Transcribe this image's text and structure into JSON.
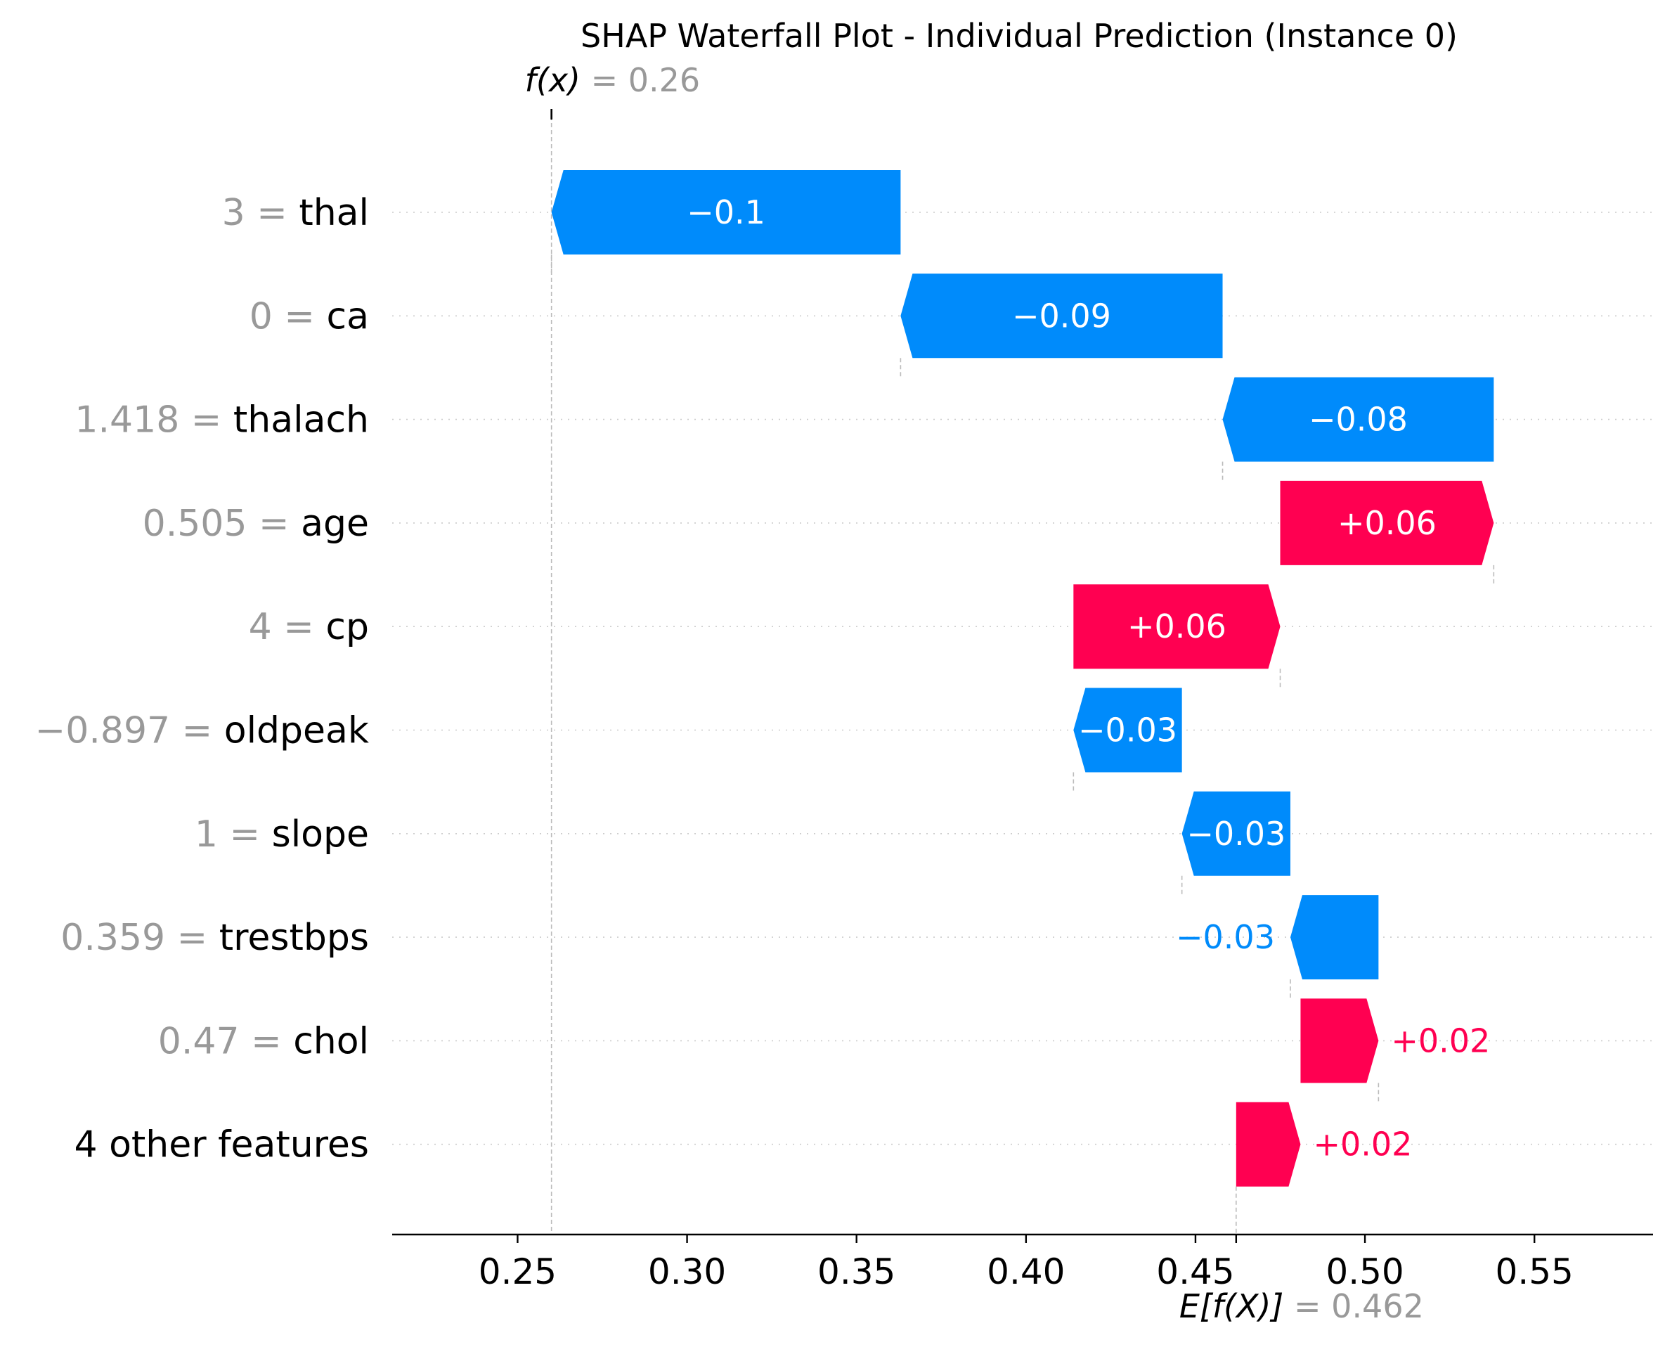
{
  "chart_data": {
    "type": "bar",
    "subtype": "waterfall",
    "title": "SHAP Waterfall Plot - Individual Prediction (Instance 0)",
    "fx": {
      "label": "f(x)",
      "value_text": "0.26",
      "value": 0.26
    },
    "base": {
      "label": "E[f(X)]",
      "value_text": "0.462",
      "value": 0.462
    },
    "xlim": [
      0.213,
      0.585
    ],
    "xticks": [
      0.25,
      0.3,
      0.35,
      0.4,
      0.45,
      0.5,
      0.55
    ],
    "xtick_labels": [
      "0.25",
      "0.30",
      "0.35",
      "0.40",
      "0.45",
      "0.50",
      "0.55"
    ],
    "features": [
      {
        "value": "3",
        "name": "thal",
        "start": 0.363,
        "end": 0.26,
        "label": "−0.1",
        "inside": true
      },
      {
        "value": "0",
        "name": "ca",
        "start": 0.458,
        "end": 0.363,
        "label": "−0.09",
        "inside": true
      },
      {
        "value": "1.418",
        "name": "thalach",
        "start": 0.538,
        "end": 0.458,
        "label": "−0.08",
        "inside": true
      },
      {
        "value": "0.505",
        "name": "age",
        "start": 0.475,
        "end": 0.538,
        "label": "+0.06",
        "inside": true
      },
      {
        "value": "4",
        "name": "cp",
        "start": 0.414,
        "end": 0.475,
        "label": "+0.06",
        "inside": true
      },
      {
        "value": "−0.897",
        "name": "oldpeak",
        "start": 0.446,
        "end": 0.414,
        "label": "−0.03",
        "inside": true
      },
      {
        "value": "1",
        "name": "slope",
        "start": 0.478,
        "end": 0.446,
        "label": "−0.03",
        "inside": true
      },
      {
        "value": "0.359",
        "name": "trestbps",
        "start": 0.504,
        "end": 0.478,
        "label": "−0.03",
        "inside": false
      },
      {
        "value": "0.47",
        "name": "chol",
        "start": 0.481,
        "end": 0.504,
        "label": "+0.02",
        "inside": false
      },
      {
        "value": "",
        "name": "4 other features",
        "start": 0.462,
        "end": 0.481,
        "label": "+0.02",
        "inside": false
      }
    ],
    "colors": {
      "positive": "#ff0051",
      "negative": "#008bfb",
      "muted": "#999999",
      "axis": "#000000",
      "gridline": "#cccccc"
    }
  }
}
